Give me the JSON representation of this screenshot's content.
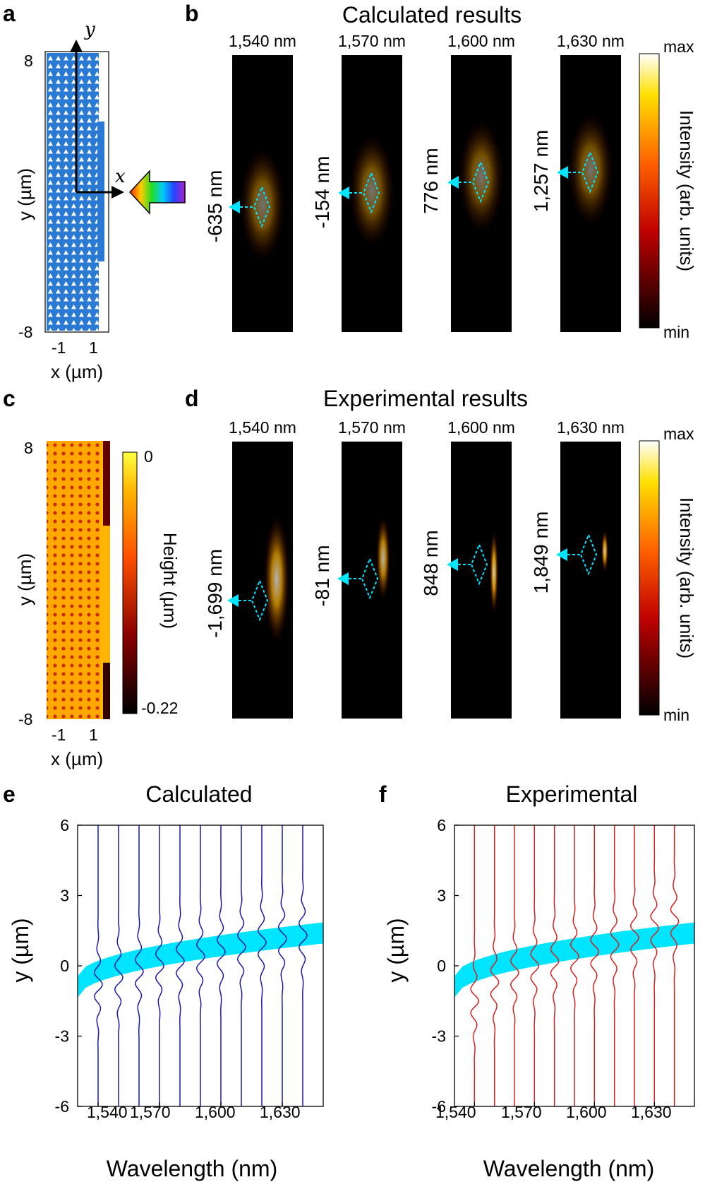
{
  "panels": {
    "a": {
      "letter": "a",
      "y_top": "8",
      "y_bottom": "-8",
      "x_ticks": [
        "-1",
        "1"
      ],
      "y_label": "y (µm)",
      "x_label": "x (µm)",
      "axis_y": "y",
      "axis_x": "x"
    },
    "b": {
      "letter": "b",
      "title": "Calculated results",
      "wavelengths": [
        "1,540 nm",
        "1,570 nm",
        "1,600 nm",
        "1,630 nm"
      ],
      "shifts": [
        "-635 nm",
        "-154 nm",
        "776 nm",
        "1,257 nm"
      ],
      "colorbar": {
        "max": "max",
        "min": "min",
        "label": "Intensity (arb. units)"
      }
    },
    "c": {
      "letter": "c",
      "y_top": "8",
      "y_bottom": "-8",
      "x_ticks": [
        "-1",
        "1"
      ],
      "y_label": "y (µm)",
      "x_label": "x (µm)",
      "colorbar": {
        "max": "0",
        "min": "-0.22",
        "label": "Height (µm)"
      }
    },
    "d": {
      "letter": "d",
      "title": "Experimental results",
      "wavelengths": [
        "1,540 nm",
        "1,570 nm",
        "1,600 nm",
        "1,630 nm"
      ],
      "shifts": [
        "-1,699 nm",
        "-81 nm",
        "848 nm",
        "1,849 nm"
      ],
      "colorbar": {
        "max": "max",
        "min": "min",
        "label": "Intensity (arb. units)"
      }
    },
    "e": {
      "letter": "e",
      "title": "Calculated",
      "x_ticks": [
        "1,540",
        "1,570",
        "1,600",
        "1,630"
      ]
    },
    "f": {
      "letter": "f",
      "title": "Experimental",
      "x_ticks": [
        "1,540",
        "1,570",
        "1,600",
        "1,630"
      ]
    }
  },
  "chart_data": [
    {
      "type": "line",
      "title": "Calculated",
      "xlabel": "Wavelength (nm)",
      "ylabel": "y (µm)",
      "ylim": [
        -6,
        6
      ],
      "xlim": [
        1530,
        1650
      ],
      "yticks": [
        -6,
        -3,
        0,
        3,
        6
      ],
      "x_tick_values": [
        1540,
        1570,
        1600,
        1630
      ],
      "line_color": "#1a1aa6",
      "band_color": "#00e5ff",
      "trace_offsets": [
        1540,
        1550,
        1560,
        1570,
        1580,
        1590,
        1600,
        1610,
        1620,
        1630,
        1640
      ],
      "peak_centers": [
        -0.8,
        -0.5,
        -0.25,
        0.0,
        0.2,
        0.4,
        0.6,
        0.8,
        1.0,
        1.15,
        1.3
      ],
      "band": {
        "x": [
          1530,
          1650
        ],
        "y_start": -0.9,
        "y_end": 1.4
      }
    },
    {
      "type": "line",
      "title": "Experimental",
      "xlabel": "Wavelength (nm)",
      "ylabel": "y (µm)",
      "ylim": [
        -6,
        6
      ],
      "xlim": [
        1530,
        1650
      ],
      "yticks": [
        -6,
        -3,
        0,
        3,
        6
      ],
      "x_tick_values": [
        1540,
        1570,
        1600,
        1630
      ],
      "line_color": "#d42020",
      "band_color": "#00e5ff",
      "trace_offsets": [
        1540,
        1550,
        1560,
        1570,
        1580,
        1590,
        1600,
        1610,
        1620,
        1630,
        1640
      ],
      "peak_centers": [
        -1.5,
        -0.7,
        -0.3,
        0.0,
        0.2,
        0.4,
        0.6,
        0.9,
        1.2,
        1.6,
        1.9
      ],
      "band": {
        "x": [
          1530,
          1650
        ],
        "y_start": -0.9,
        "y_end": 1.4
      }
    }
  ]
}
